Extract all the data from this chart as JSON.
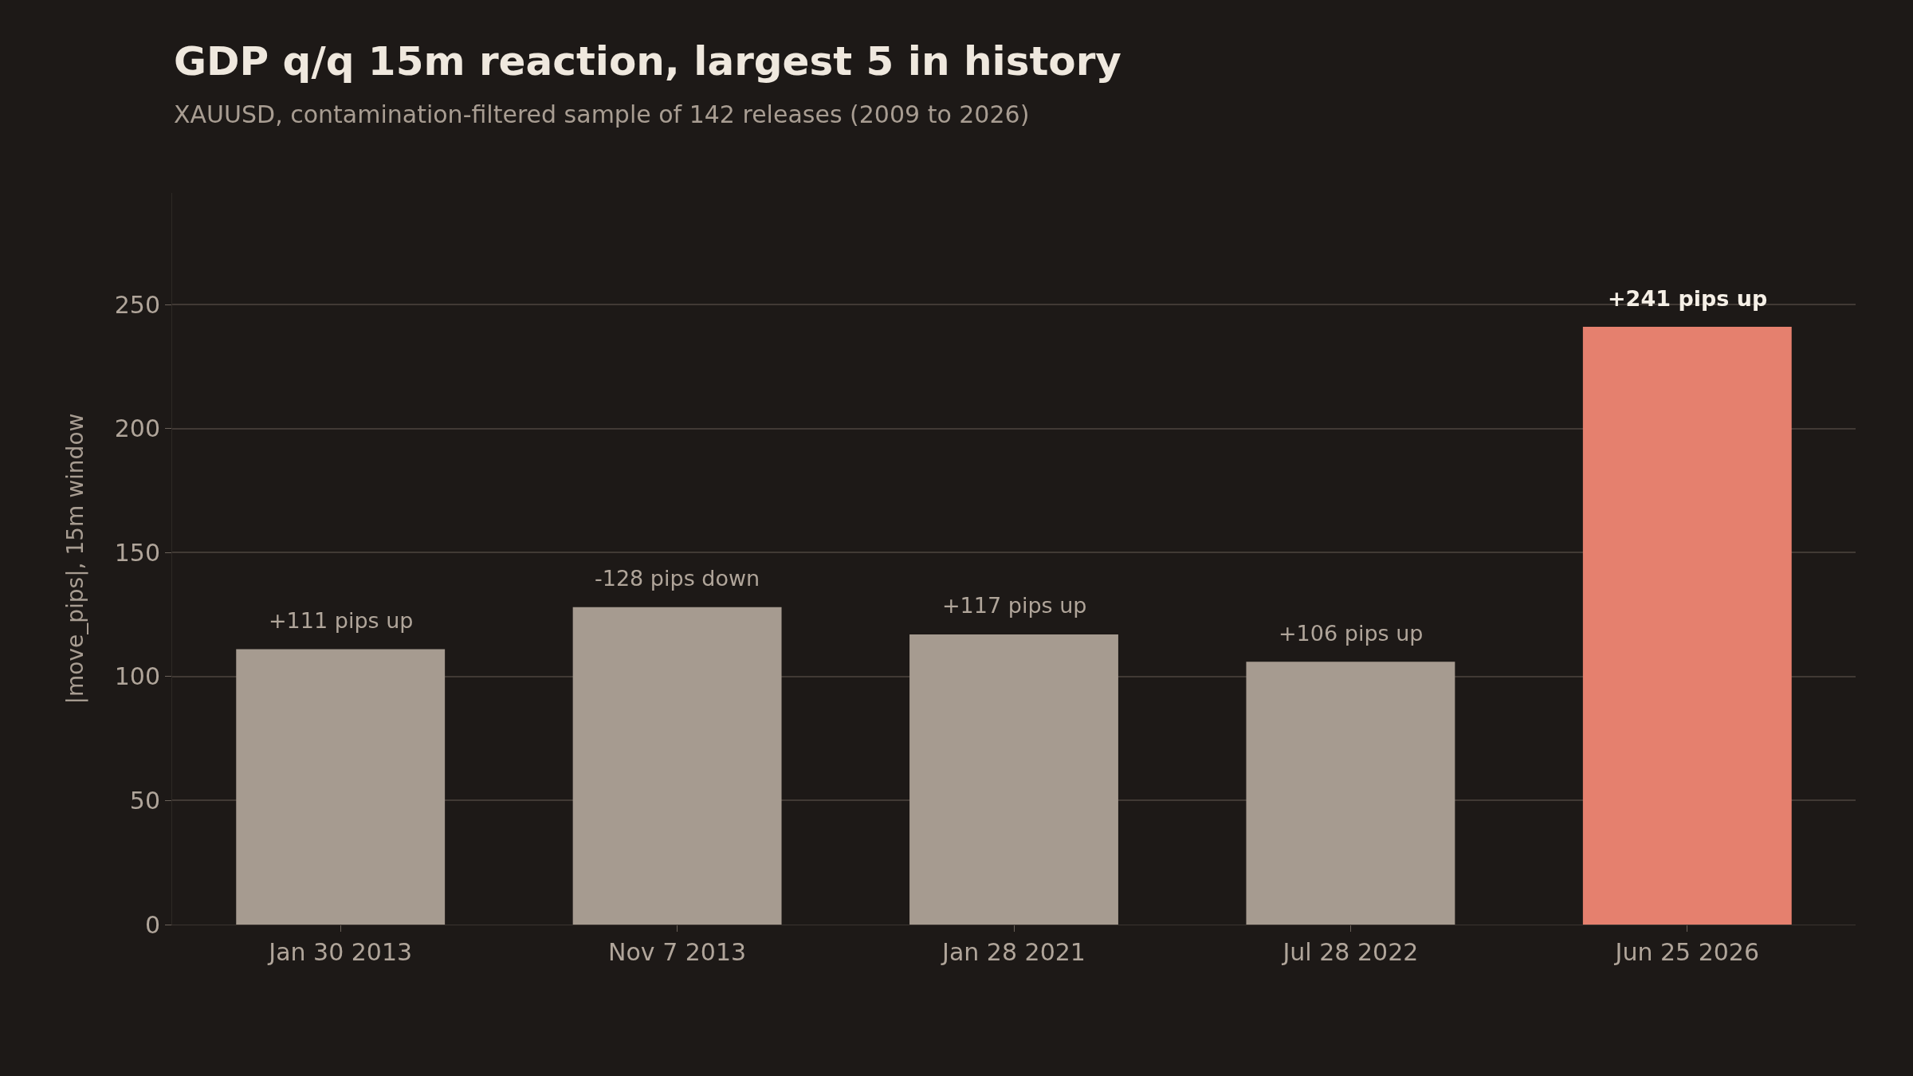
{
  "chart_data": {
    "type": "bar",
    "title": "GDP q/q 15m reaction, largest 5 in history",
    "subtitle": "XAUUSD, contamination-filtered sample of 142 releases (2009 to 2026)",
    "ylabel": "|move_pips|, 15m window",
    "categories": [
      "Jan 30 2013",
      "Nov 7 2013",
      "Jan 28 2021",
      "Jul 28 2022",
      "Jun 25 2026"
    ],
    "values": [
      111,
      128,
      117,
      106,
      241
    ],
    "colors": [
      "#a69b90",
      "#a69b90",
      "#a69b90",
      "#a69b90",
      "#e5806e"
    ],
    "annotations": [
      {
        "text": "+111 pips up",
        "x": "Jan 30 2013",
        "y": 111
      },
      {
        "text": "-128 pips down",
        "x": "Nov 7 2013",
        "y": 128
      },
      {
        "text": "+117 pips up",
        "x": "Jan 28 2021",
        "y": 117
      },
      {
        "text": "+106 pips up",
        "x": "Jul 28 2022",
        "y": 106
      },
      {
        "text": "+241 pips up",
        "x": "Jun 25 2026",
        "y": 241
      }
    ],
    "ylim": [
      0,
      295
    ],
    "yticks": [
      0,
      50,
      100,
      150,
      200,
      250
    ],
    "grid": "y",
    "legend": false
  }
}
